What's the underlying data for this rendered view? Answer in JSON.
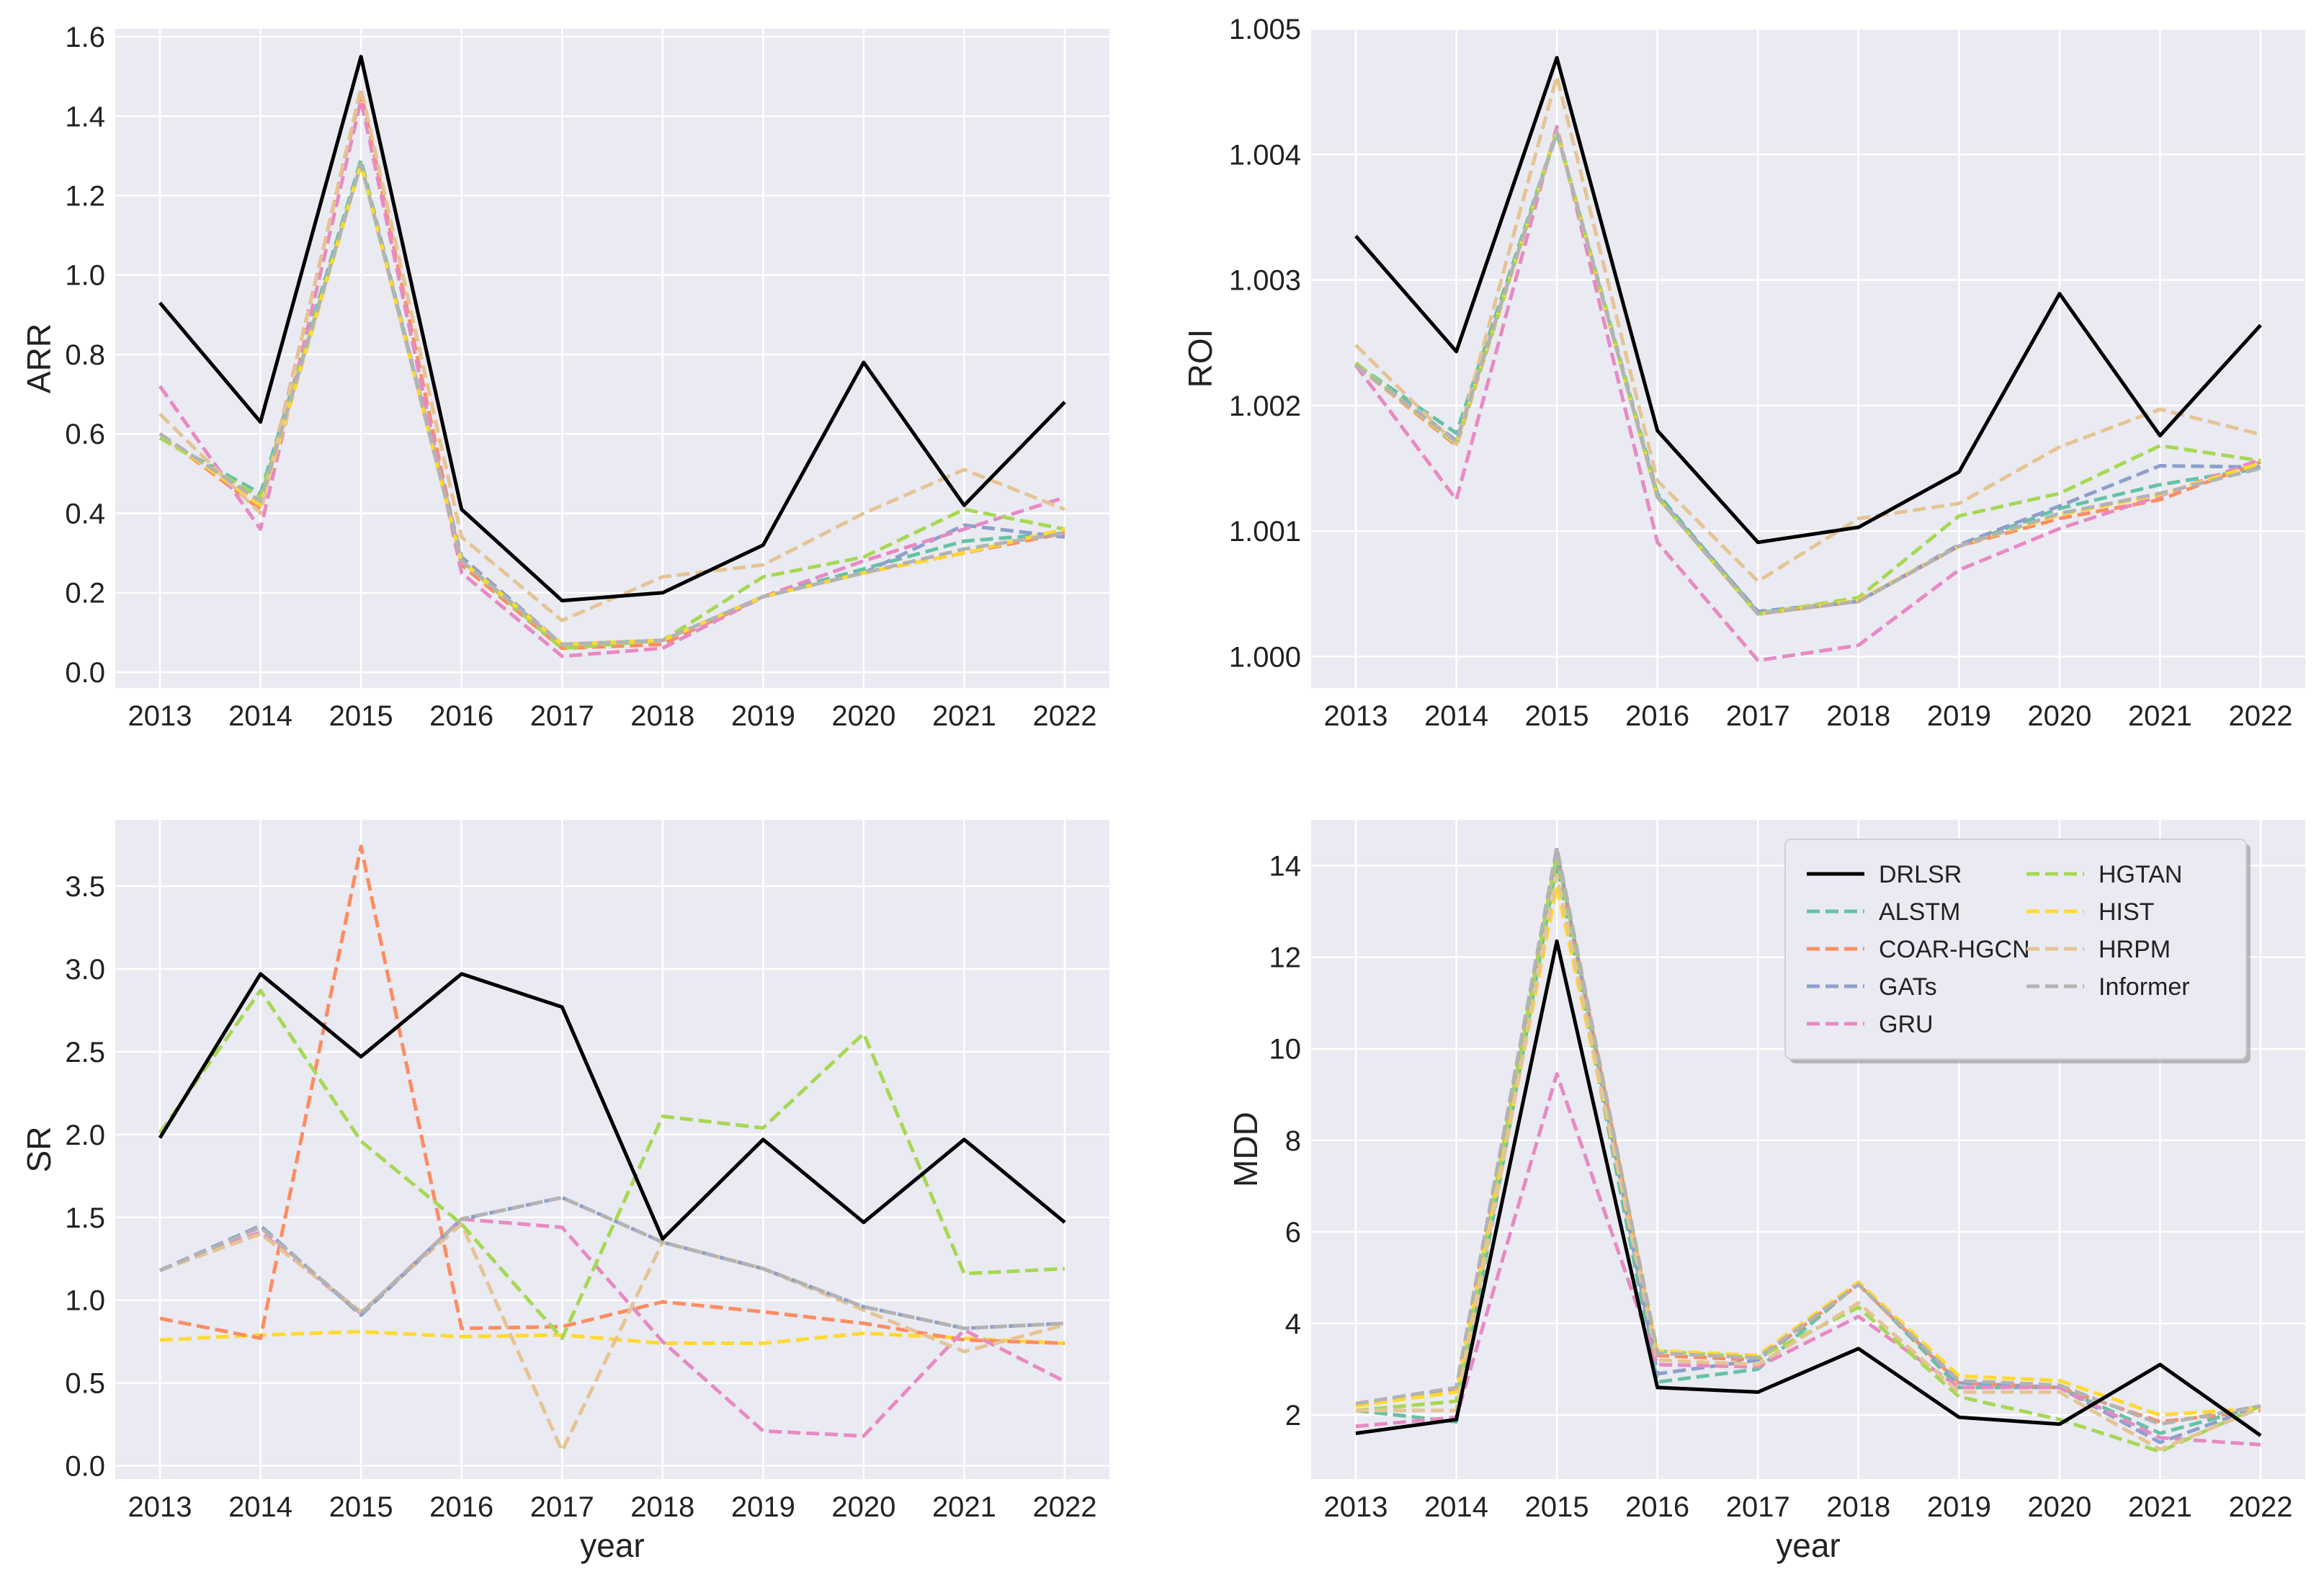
{
  "colors": {
    "DRLSR": "#000000",
    "ALSTM": "#66c2a5",
    "COAR-HGCN": "#fc8d62",
    "GATs": "#8da0cb",
    "GRU": "#e78ac3",
    "HGTAN": "#a6d854",
    "HIST": "#ffd92f",
    "HRPM": "#e5c494",
    "Informer": "#b3b3b3"
  },
  "legend": {
    "location": "upper-right of MDD panel",
    "columns": [
      [
        "DRLSR",
        "ALSTM",
        "COAR-HGCN",
        "GATs",
        "GRU"
      ],
      [
        "HGTAN",
        "HIST",
        "HRPM",
        "Informer"
      ]
    ]
  },
  "chart_data": [
    {
      "id": "arr",
      "type": "line",
      "title": "",
      "xlabel": "",
      "ylabel": "ARR",
      "categories": [
        "2013",
        "2014",
        "2015",
        "2016",
        "2017",
        "2018",
        "2019",
        "2020",
        "2021",
        "2022"
      ],
      "ylim": [
        -0.04,
        1.62
      ],
      "yticks": [
        0.0,
        0.2,
        0.4,
        0.6,
        0.8,
        1.0,
        1.2,
        1.4,
        1.6
      ],
      "ytick_labels": [
        "0.0",
        "0.2",
        "0.4",
        "0.6",
        "0.8",
        "1.0",
        "1.2",
        "1.4",
        "1.6"
      ],
      "series": [
        {
          "name": "ALSTM",
          "values": [
            0.59,
            0.45,
            1.29,
            0.28,
            0.07,
            0.08,
            0.19,
            0.26,
            0.33,
            0.35
          ]
        },
        {
          "name": "COAR-HGCN",
          "values": [
            0.6,
            0.41,
            1.46,
            0.27,
            0.06,
            0.07,
            0.19,
            0.25,
            0.3,
            0.35
          ]
        },
        {
          "name": "GATs",
          "values": [
            0.6,
            0.42,
            1.28,
            0.29,
            0.07,
            0.08,
            0.19,
            0.25,
            0.37,
            0.34
          ]
        },
        {
          "name": "GRU",
          "values": [
            0.72,
            0.36,
            1.44,
            0.25,
            0.04,
            0.06,
            0.19,
            0.28,
            0.36,
            0.44
          ]
        },
        {
          "name": "HGTAN",
          "values": [
            0.59,
            0.44,
            1.28,
            0.28,
            0.06,
            0.08,
            0.24,
            0.29,
            0.41,
            0.36
          ]
        },
        {
          "name": "HIST",
          "values": [
            0.6,
            0.42,
            1.28,
            0.28,
            0.07,
            0.08,
            0.19,
            0.25,
            0.3,
            0.36
          ]
        },
        {
          "name": "HRPM",
          "values": [
            0.65,
            0.4,
            1.47,
            0.34,
            0.13,
            0.24,
            0.27,
            0.4,
            0.51,
            0.41
          ]
        },
        {
          "name": "Informer",
          "values": [
            0.6,
            0.43,
            1.28,
            0.28,
            0.07,
            0.08,
            0.19,
            0.25,
            0.31,
            0.35
          ]
        },
        {
          "name": "DRLSR",
          "values": [
            0.93,
            0.63,
            1.55,
            0.41,
            0.18,
            0.2,
            0.32,
            0.78,
            0.42,
            0.68
          ]
        }
      ]
    },
    {
      "id": "roi",
      "type": "line",
      "title": "",
      "xlabel": "",
      "ylabel": "ROI",
      "categories": [
        "2013",
        "2014",
        "2015",
        "2016",
        "2017",
        "2018",
        "2019",
        "2020",
        "2021",
        "2022"
      ],
      "ylim": [
        0.99975,
        1.005
      ],
      "yticks": [
        1.0,
        1.001,
        1.002,
        1.003,
        1.004,
        1.005
      ],
      "ytick_labels": [
        "1.000",
        "1.001",
        "1.002",
        "1.003",
        "1.004",
        "1.005"
      ],
      "series": [
        {
          "name": "ALSTM",
          "values": [
            1.00233,
            1.00178,
            1.00418,
            1.0013,
            1.00035,
            1.00044,
            1.00088,
            1.00118,
            1.00137,
            1.0015
          ]
        },
        {
          "name": "COAR-HGCN",
          "values": [
            1.00232,
            1.00168,
            1.00418,
            1.00127,
            1.00034,
            1.00044,
            1.00088,
            1.0011,
            1.00125,
            1.00155
          ]
        },
        {
          "name": "GATs",
          "values": [
            1.00232,
            1.00172,
            1.00417,
            1.00128,
            1.00036,
            1.00044,
            1.00089,
            1.0012,
            1.00152,
            1.00151
          ]
        },
        {
          "name": "GRU",
          "values": [
            1.00232,
            1.00125,
            1.00422,
            1.00091,
            0.99997,
            1.00009,
            1.00069,
            1.00102,
            1.00128,
            1.00157
          ]
        },
        {
          "name": "HGTAN",
          "values": [
            1.00234,
            1.00169,
            1.00418,
            1.00127,
            1.00034,
            1.00047,
            1.00112,
            1.0013,
            1.00168,
            1.00156
          ]
        },
        {
          "name": "HIST",
          "values": [
            1.00232,
            1.0017,
            1.00418,
            1.00127,
            1.00034,
            1.00045,
            1.00088,
            1.00113,
            1.00129,
            1.00154
          ]
        },
        {
          "name": "HRPM",
          "values": [
            1.00248,
            1.00169,
            1.00462,
            1.0014,
            1.0006,
            1.0011,
            1.00122,
            1.00167,
            1.00197,
            1.00177
          ]
        },
        {
          "name": "Informer",
          "values": [
            1.00232,
            1.00171,
            1.00418,
            1.00127,
            1.00034,
            1.00044,
            1.00088,
            1.00114,
            1.0013,
            1.0015
          ]
        },
        {
          "name": "DRLSR",
          "values": [
            1.00335,
            1.00243,
            1.00477,
            1.0018,
            1.00091,
            1.00103,
            1.00147,
            1.00289,
            1.00176,
            1.00264
          ]
        }
      ]
    },
    {
      "id": "sr",
      "type": "line",
      "title": "",
      "xlabel": "year",
      "ylabel": "SR",
      "categories": [
        "2013",
        "2014",
        "2015",
        "2016",
        "2017",
        "2018",
        "2019",
        "2020",
        "2021",
        "2022"
      ],
      "ylim": [
        -0.08,
        3.9
      ],
      "yticks": [
        0.0,
        0.5,
        1.0,
        1.5,
        2.0,
        2.5,
        3.0,
        3.5
      ],
      "ytick_labels": [
        "0.0",
        "0.5",
        "1.0",
        "1.5",
        "2.0",
        "2.5",
        "3.0",
        "3.5"
      ],
      "series": [
        {
          "name": "HIST",
          "values": [
            0.76,
            0.79,
            0.81,
            0.78,
            0.79,
            0.74,
            0.74,
            0.8,
            0.77,
            0.74
          ]
        },
        {
          "name": "COAR-HGCN",
          "values": [
            0.89,
            0.77,
            3.74,
            0.83,
            0.84,
            0.99,
            0.93,
            0.86,
            0.76,
            0.74
          ]
        },
        {
          "name": "GRU",
          "values": [
            1.18,
            1.41,
            0.92,
            1.49,
            1.44,
            0.75,
            0.21,
            0.18,
            0.82,
            0.51
          ]
        },
        {
          "name": "HRPM",
          "values": [
            1.18,
            1.4,
            0.93,
            1.46,
            0.09,
            1.35,
            1.19,
            0.94,
            0.69,
            0.85
          ]
        },
        {
          "name": "GATs",
          "values": [
            1.18,
            1.45,
            0.91,
            1.49,
            1.62,
            1.35,
            1.19,
            0.96,
            0.83,
            0.86
          ]
        },
        {
          "name": "Informer",
          "values": [
            1.18,
            1.44,
            0.92,
            1.49,
            1.62,
            1.35,
            1.19,
            0.96,
            0.83,
            0.86
          ]
        },
        {
          "name": "HGTAN",
          "values": [
            2.01,
            2.87,
            1.96,
            1.46,
            0.77,
            2.11,
            2.04,
            2.61,
            1.16,
            1.19
          ]
        },
        {
          "name": "DRLSR",
          "values": [
            1.98,
            2.97,
            2.47,
            2.97,
            2.77,
            1.37,
            1.97,
            1.47,
            1.97,
            1.47
          ]
        }
      ]
    },
    {
      "id": "mdd",
      "type": "line",
      "title": "",
      "xlabel": "year",
      "ylabel": "MDD",
      "categories": [
        "2013",
        "2014",
        "2015",
        "2016",
        "2017",
        "2018",
        "2019",
        "2020",
        "2021",
        "2022"
      ],
      "ylim": [
        0.6,
        15.0
      ],
      "yticks": [
        2,
        4,
        6,
        8,
        10,
        12,
        14
      ],
      "ytick_labels": [
        "2",
        "4",
        "6",
        "8",
        "10",
        "12",
        "14"
      ],
      "series": [
        {
          "name": "ALSTM",
          "values": [
            2.1,
            1.85,
            14.05,
            2.72,
            3.0,
            4.88,
            2.6,
            2.6,
            1.6,
            2.2
          ]
        },
        {
          "name": "COAR-HGCN",
          "values": [
            2.2,
            2.55,
            14.3,
            3.3,
            3.2,
            4.85,
            2.7,
            2.6,
            1.85,
            2.1
          ]
        },
        {
          "name": "GATs",
          "values": [
            2.2,
            2.6,
            14.35,
            2.9,
            3.2,
            4.9,
            2.7,
            2.6,
            1.4,
            2.2
          ]
        },
        {
          "name": "GRU",
          "values": [
            1.75,
            1.95,
            9.45,
            3.1,
            3.05,
            4.15,
            2.6,
            2.6,
            1.5,
            1.35
          ]
        },
        {
          "name": "HGTAN",
          "values": [
            2.1,
            2.3,
            14.25,
            3.4,
            3.25,
            4.35,
            2.4,
            1.9,
            1.2,
            2.2
          ]
        },
        {
          "name": "HIST",
          "values": [
            2.2,
            2.5,
            13.55,
            3.4,
            3.3,
            4.9,
            2.85,
            2.75,
            2.0,
            2.15
          ]
        },
        {
          "name": "HRPM",
          "values": [
            2.1,
            2.1,
            13.8,
            3.2,
            3.1,
            4.45,
            2.5,
            2.5,
            1.25,
            2.15
          ]
        },
        {
          "name": "Informer",
          "values": [
            2.25,
            2.6,
            14.4,
            3.35,
            3.25,
            4.85,
            2.75,
            2.65,
            1.8,
            2.2
          ]
        },
        {
          "name": "DRLSR",
          "values": [
            1.6,
            1.9,
            12.35,
            2.6,
            2.5,
            3.45,
            1.95,
            1.8,
            3.1,
            1.55
          ]
        }
      ]
    }
  ]
}
